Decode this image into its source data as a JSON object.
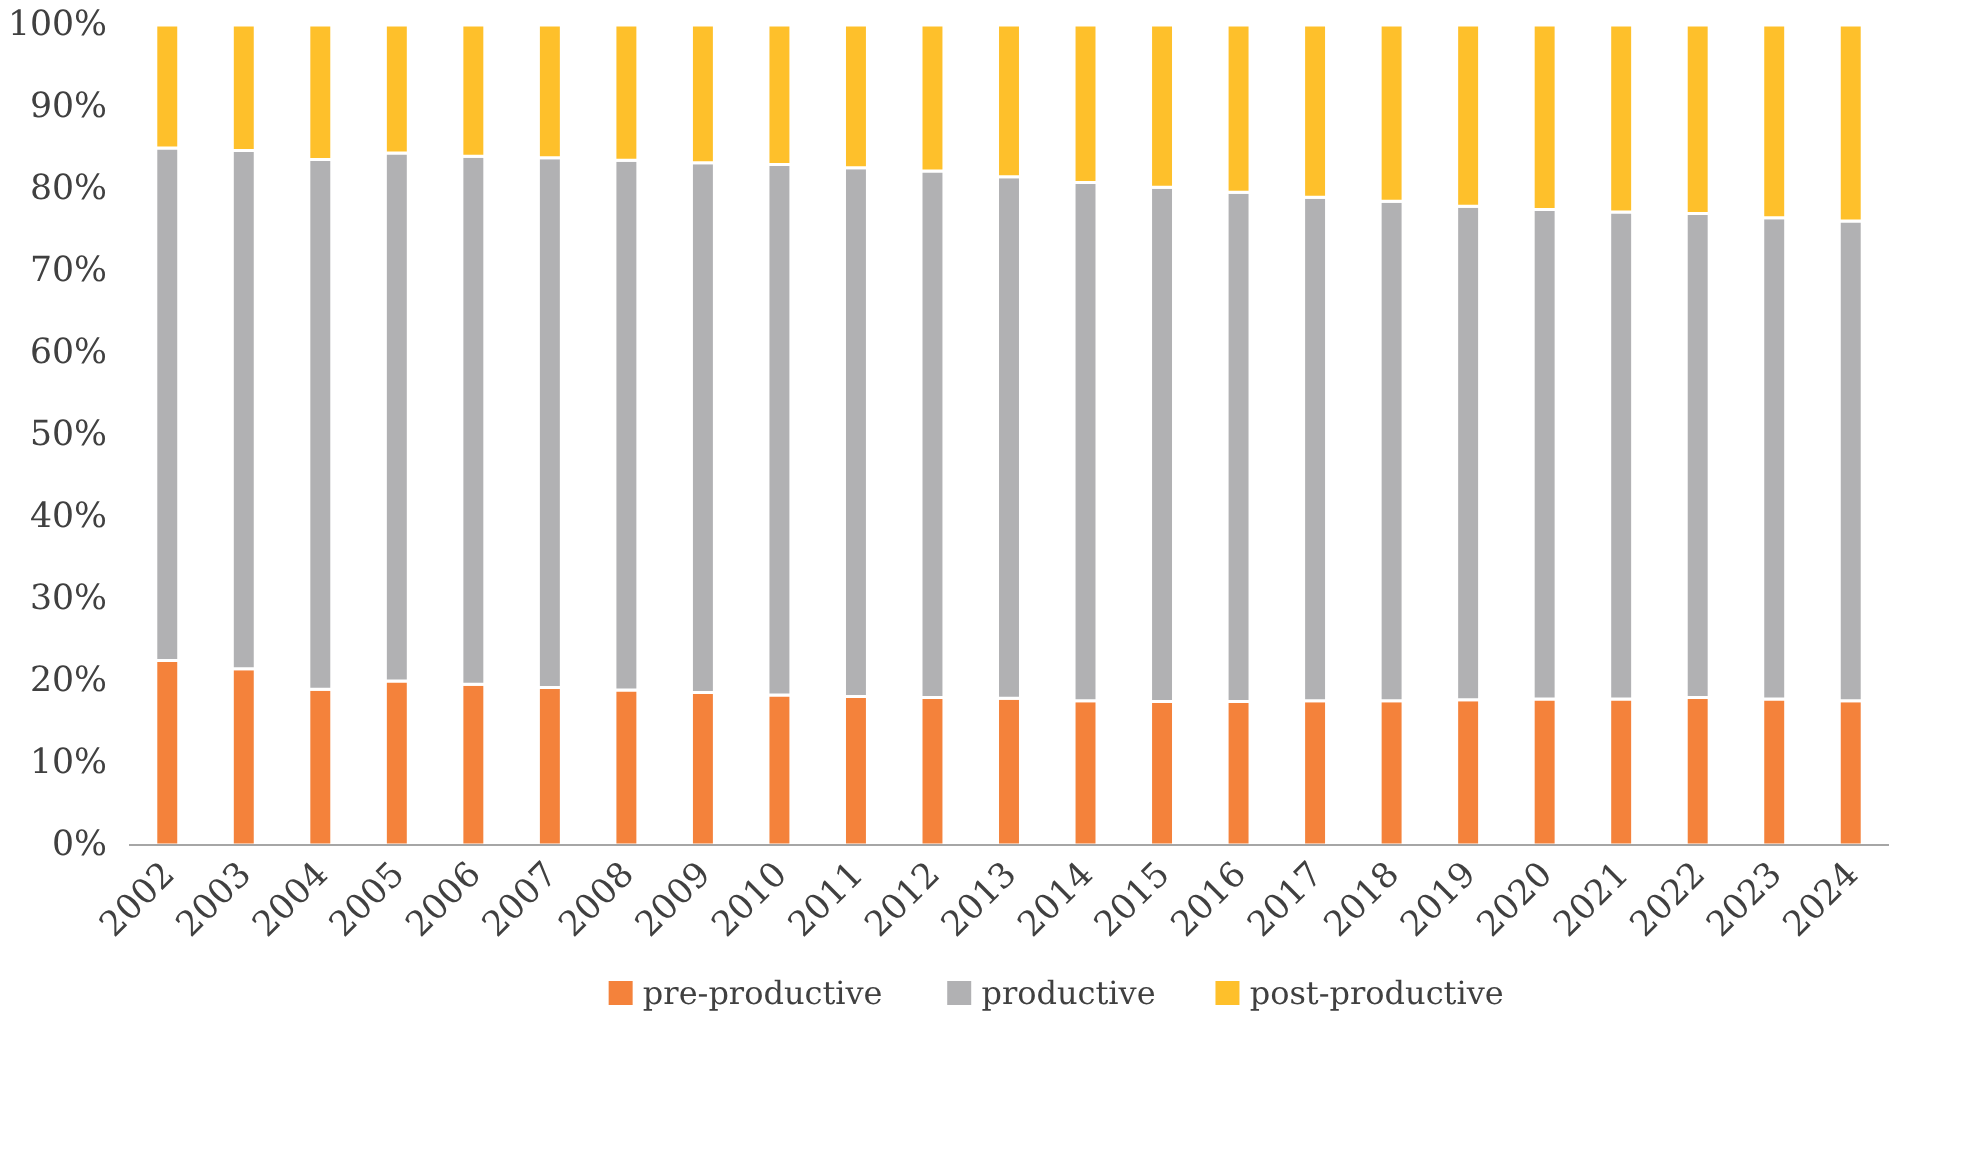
{
  "chart_data": {
    "type": "bar",
    "stacked": true,
    "categories": [
      "2002",
      "2003",
      "2004",
      "2005",
      "2006",
      "2007",
      "2008",
      "2009",
      "2010",
      "2011",
      "2012",
      "2013",
      "2014",
      "2015",
      "2016",
      "2017",
      "2018",
      "2019",
      "2020",
      "2021",
      "2022",
      "2023",
      "2024"
    ],
    "series": [
      {
        "name": "pre-productive",
        "color": "#f4823b",
        "values": [
          22.5,
          21.5,
          19,
          20,
          19.6,
          19.2,
          18.9,
          18.6,
          18.3,
          18.1,
          18,
          17.9,
          17.6,
          17.5,
          17.5,
          17.6,
          17.6,
          17.7,
          17.8,
          17.8,
          18,
          17.8,
          17.6
        ]
      },
      {
        "name": "productive",
        "color": "#b1b1b3",
        "values": [
          62.5,
          63.2,
          64.6,
          64.4,
          64.4,
          64.6,
          64.6,
          64.6,
          64.7,
          64.5,
          64.2,
          63.6,
          63.2,
          62.7,
          62.1,
          61.4,
          60.9,
          60.2,
          59.7,
          59.4,
          59,
          58.7,
          58.5
        ]
      },
      {
        "name": "post-productive",
        "color": "#fec02b",
        "values": [
          15,
          15.3,
          16.4,
          15.6,
          16,
          16.2,
          16.5,
          16.8,
          17,
          17.4,
          17.8,
          18.5,
          19.2,
          19.8,
          20.4,
          21,
          21.5,
          22.1,
          22.5,
          22.8,
          23,
          23.5,
          23.9
        ]
      }
    ],
    "ylim": [
      0,
      100
    ],
    "yticks": [
      {
        "value": 0,
        "label": "0%"
      },
      {
        "value": 10,
        "label": "10%"
      },
      {
        "value": 20,
        "label": "20%"
      },
      {
        "value": 30,
        "label": "30%"
      },
      {
        "value": 40,
        "label": "40%"
      },
      {
        "value": 50,
        "label": "50%"
      },
      {
        "value": 60,
        "label": "60%"
      },
      {
        "value": 70,
        "label": "70%"
      },
      {
        "value": 80,
        "label": "80%"
      },
      {
        "value": 90,
        "label": "90%"
      },
      {
        "value": 100,
        "label": "100%"
      }
    ],
    "grid": false,
    "legend": "bottom"
  }
}
